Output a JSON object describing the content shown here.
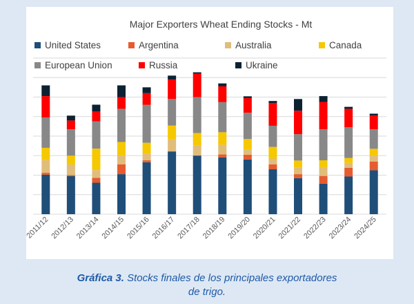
{
  "chart_data": {
    "type": "bar",
    "stacked": true,
    "title": "Major Exporters Wheat Ending Stocks - Mt",
    "xlabel": "",
    "ylabel": "",
    "ylim": [
      0,
      80
    ],
    "yticks": [
      "-",
      "10",
      "20",
      "30",
      "40",
      "50",
      "60",
      "70",
      "80"
    ],
    "grid": true,
    "legend_position": "top",
    "categories": [
      "2011/12",
      "2012/13",
      "2013/14",
      "2014/15",
      "2015/16",
      "2016/17",
      "2017/18",
      "2018/19",
      "2019/20",
      "2020/21",
      "2021/22",
      "2022/23",
      "2023/24",
      "2024/25"
    ],
    "series": [
      {
        "name": "United States",
        "color": "#1f4e79",
        "values": [
          20.2,
          19.5,
          16.1,
          20.5,
          26.6,
          32.1,
          30.0,
          29.1,
          28.0,
          23.0,
          18.5,
          15.6,
          19.3,
          22.5
        ]
      },
      {
        "name": "Argentina",
        "color": "#e65c30",
        "values": [
          1.0,
          0.5,
          2.5,
          5.0,
          1.0,
          0.2,
          0.1,
          1.5,
          2.5,
          2.5,
          2.0,
          4.0,
          4.5,
          4.5
        ]
      },
      {
        "name": "Australia",
        "color": "#e0bd7a",
        "values": [
          6.5,
          5.5,
          4.0,
          4.5,
          3.5,
          6.0,
          5.0,
          5.0,
          2.5,
          3.0,
          3.5,
          4.5,
          2.5,
          3.0
        ]
      },
      {
        "name": "Canada",
        "color": "#f6c800",
        "values": [
          6.3,
          4.5,
          11.0,
          7.0,
          5.5,
          7.1,
          6.5,
          6.4,
          5.5,
          6.0,
          3.5,
          3.5,
          2.5,
          3.5
        ]
      },
      {
        "name": "European Union",
        "color": "#888888",
        "values": [
          15.5,
          13.5,
          14.0,
          17.0,
          19.4,
          13.6,
          18.4,
          15.4,
          13.5,
          10.8,
          13.5,
          15.9,
          15.7,
          10.0
        ]
      },
      {
        "name": "Russia",
        "color": "#ff0000",
        "values": [
          11.0,
          4.5,
          5.0,
          6.0,
          6.0,
          10.0,
          12.0,
          8.1,
          7.5,
          11.7,
          12.0,
          14.0,
          9.5,
          7.0
        ]
      },
      {
        "name": "Ukraine",
        "color": "#0c2233",
        "values": [
          5.5,
          2.5,
          3.5,
          6.0,
          3.0,
          2.0,
          0.7,
          1.5,
          0.9,
          1.0,
          6.0,
          3.0,
          1.0,
          1.0
        ]
      }
    ]
  },
  "caption": {
    "label": "Gráfica 3.",
    "text_line1": " Stocks finales de los principales exportadores",
    "text_line2": "de trigo."
  }
}
